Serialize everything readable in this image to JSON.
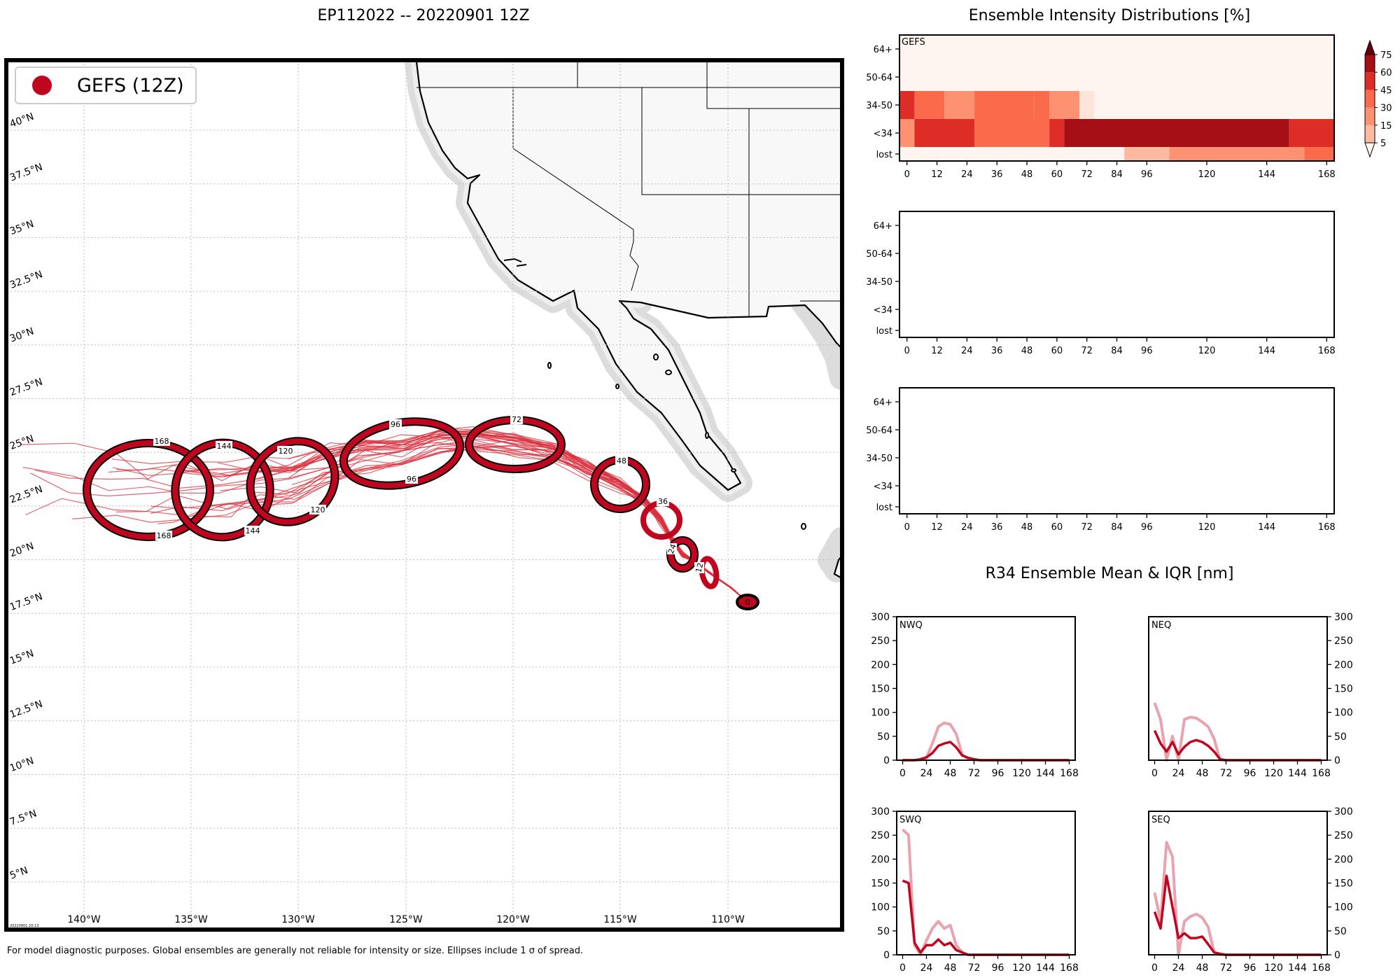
{
  "figure": {
    "map_title": "EP112022 -- 20220901 12Z",
    "intensity_title": "Ensemble Intensity Distributions [%]",
    "r34_title": "R34 Ensemble Mean & IQR [nm]",
    "footer": "For model diagnostic purposes. Global ensembles are generally not reliable for intensity or size. Ellipses include 1 σ of spread.",
    "timestamp": "20220901 20:13",
    "colors": {
      "accent": "#c0061f",
      "track": "#d9323f",
      "iqr": "#e8a3ae",
      "land": "#f8f8f8"
    }
  },
  "map": {
    "legend_label": "GEFS (12Z)",
    "lon_labels": [
      "140°W",
      "135°W",
      "130°W",
      "125°W",
      "120°W",
      "115°W",
      "110°W"
    ],
    "lat_labels": [
      "40°N",
      "37.5°N",
      "35°N",
      "32.5°N",
      "30°N",
      "27.5°N",
      "25°N",
      "22.5°N",
      "20°N",
      "17.5°N",
      "15°N",
      "12.5°N",
      "10°N",
      "7.5°N",
      "5°N"
    ]
  },
  "chart_data": [
    {
      "type": "heatmap",
      "panel": "GEFS",
      "rows": [
        "64+",
        "50-64",
        "34-50",
        "<34",
        "lost"
      ],
      "x_ticks": [
        0,
        12,
        24,
        36,
        48,
        60,
        72,
        84,
        96,
        120,
        144,
        168
      ],
      "colorbar": {
        "levels": [
          5,
          15,
          30,
          45,
          60,
          75
        ]
      },
      "cells": [
        {
          "row": "34-50",
          "x0": -3,
          "x1": 3,
          "pct": 68
        },
        {
          "row": "34-50",
          "x0": 3,
          "x1": 15,
          "pct": 50
        },
        {
          "row": "34-50",
          "x0": 15,
          "x1": 27,
          "pct": 30
        },
        {
          "row": "34-50",
          "x0": 27,
          "x1": 33,
          "pct": 48
        },
        {
          "row": "34-50",
          "x0": 33,
          "x1": 51,
          "pct": 58
        },
        {
          "row": "34-50",
          "x0": 51,
          "x1": 57,
          "pct": 47
        },
        {
          "row": "34-50",
          "x0": 57,
          "x1": 69,
          "pct": 30
        },
        {
          "row": "34-50",
          "x0": 69,
          "x1": 75,
          "pct": 12
        },
        {
          "row": "<34",
          "x0": -3,
          "x1": 3,
          "pct": 32
        },
        {
          "row": "<34",
          "x0": 3,
          "x1": 27,
          "pct": 68
        },
        {
          "row": "<34",
          "x0": 27,
          "x1": 57,
          "pct": 57
        },
        {
          "row": "<34",
          "x0": 57,
          "x1": 63,
          "pct": 68
        },
        {
          "row": "<34",
          "x0": 63,
          "x1": 153,
          "pct": 82
        },
        {
          "row": "<34",
          "x0": 153,
          "x1": 171,
          "pct": 68
        },
        {
          "row": "lost",
          "x0": 87,
          "x1": 105,
          "pct": 15
        },
        {
          "row": "lost",
          "x0": 105,
          "x1": 159,
          "pct": 33
        },
        {
          "row": "lost",
          "x0": 159,
          "x1": 171,
          "pct": 48
        }
      ]
    },
    {
      "type": "heatmap",
      "panel": "",
      "rows": [
        "64+",
        "50-64",
        "34-50",
        "<34",
        "lost"
      ],
      "x_ticks": [
        0,
        12,
        24,
        36,
        48,
        60,
        72,
        84,
        96,
        120,
        144,
        168
      ],
      "cells": []
    },
    {
      "type": "heatmap",
      "panel": "",
      "rows": [
        "64+",
        "50-64",
        "34-50",
        "<34",
        "lost"
      ],
      "x_ticks": [
        0,
        12,
        24,
        36,
        48,
        60,
        72,
        84,
        96,
        120,
        144,
        168
      ],
      "cells": []
    },
    {
      "type": "line",
      "panel": "NWQ",
      "x": [
        0,
        6,
        12,
        18,
        24,
        30,
        36,
        42,
        48,
        54,
        60,
        66,
        72,
        78,
        84,
        90,
        96,
        102,
        108,
        114,
        120,
        126,
        132,
        138,
        144,
        150,
        156,
        162,
        168
      ],
      "series": [
        {
          "role": "iqr",
          "values": [
            0,
            0,
            0,
            0,
            5,
            35,
            70,
            78,
            75,
            55,
            12,
            3,
            0,
            0,
            0,
            0,
            0,
            0,
            0,
            0,
            0,
            0,
            0,
            0,
            0,
            0,
            0,
            0,
            0
          ]
        },
        {
          "role": "mean",
          "values": [
            0,
            0,
            0,
            2,
            6,
            15,
            30,
            35,
            38,
            27,
            10,
            5,
            2,
            0,
            0,
            0,
            0,
            0,
            0,
            0,
            0,
            0,
            0,
            0,
            0,
            0,
            0,
            0,
            0
          ]
        }
      ],
      "x_ticks": [
        0,
        24,
        48,
        72,
        96,
        120,
        144,
        168
      ],
      "y_ticks": [
        0,
        50,
        100,
        150,
        200,
        250,
        300
      ],
      "ylim": [
        0,
        300
      ]
    },
    {
      "type": "line",
      "panel": "NEQ",
      "x": [
        0,
        6,
        12,
        18,
        24,
        30,
        36,
        42,
        48,
        54,
        60,
        66,
        72,
        78,
        84,
        90,
        96,
        102,
        108,
        114,
        120,
        126,
        132,
        138,
        144,
        150,
        156,
        162,
        168
      ],
      "series": [
        {
          "role": "iqr",
          "values": [
            120,
            85,
            0,
            50,
            0,
            85,
            90,
            88,
            80,
            70,
            45,
            0,
            0,
            0,
            0,
            0,
            0,
            0,
            0,
            0,
            0,
            0,
            0,
            0,
            0,
            0,
            0,
            0,
            0
          ]
        },
        {
          "role": "mean",
          "values": [
            62,
            35,
            18,
            38,
            12,
            28,
            38,
            42,
            38,
            30,
            18,
            2,
            0,
            0,
            0,
            0,
            0,
            0,
            0,
            0,
            0,
            0,
            0,
            0,
            0,
            0,
            0,
            0,
            0
          ]
        }
      ],
      "x_ticks": [
        0,
        24,
        48,
        72,
        96,
        120,
        144,
        168
      ],
      "y_ticks": [
        0,
        50,
        100,
        150,
        200,
        250,
        300
      ],
      "ylim": [
        0,
        300
      ]
    },
    {
      "type": "line",
      "panel": "SWQ",
      "x": [
        0,
        6,
        12,
        18,
        24,
        30,
        36,
        42,
        48,
        54,
        60,
        66,
        72,
        78,
        84,
        90,
        96,
        102,
        108,
        114,
        120,
        126,
        132,
        138,
        144,
        150,
        156,
        162,
        168
      ],
      "series": [
        {
          "role": "iqr",
          "values": [
            262,
            250,
            20,
            0,
            30,
            55,
            70,
            55,
            62,
            20,
            5,
            0,
            0,
            0,
            0,
            0,
            0,
            0,
            0,
            0,
            0,
            0,
            0,
            0,
            0,
            0,
            0,
            0,
            0
          ]
        },
        {
          "role": "mean",
          "values": [
            155,
            150,
            25,
            5,
            20,
            20,
            32,
            20,
            25,
            10,
            5,
            0,
            0,
            0,
            0,
            0,
            0,
            0,
            0,
            0,
            0,
            0,
            0,
            0,
            0,
            0,
            0,
            0,
            0
          ]
        }
      ],
      "x_ticks": [
        0,
        24,
        48,
        72,
        96,
        120,
        144,
        168
      ],
      "y_ticks": [
        0,
        50,
        100,
        150,
        200,
        250,
        300
      ],
      "ylim": [
        0,
        300
      ]
    },
    {
      "type": "line",
      "panel": "SEQ",
      "x": [
        0,
        6,
        12,
        18,
        24,
        30,
        36,
        42,
        48,
        54,
        60,
        66,
        72,
        78,
        84,
        90,
        96,
        102,
        108,
        114,
        120,
        126,
        132,
        138,
        144,
        150,
        156,
        162,
        168
      ],
      "series": [
        {
          "role": "iqr",
          "values": [
            130,
            70,
            235,
            205,
            0,
            70,
            80,
            85,
            78,
            58,
            5,
            0,
            0,
            0,
            0,
            0,
            0,
            0,
            0,
            0,
            0,
            0,
            0,
            0,
            0,
            0,
            0,
            0,
            0
          ]
        },
        {
          "role": "mean",
          "values": [
            90,
            55,
            165,
            100,
            35,
            45,
            35,
            35,
            38,
            22,
            5,
            2,
            0,
            0,
            0,
            0,
            0,
            0,
            0,
            0,
            0,
            0,
            0,
            0,
            0,
            0,
            0,
            0,
            0
          ]
        }
      ],
      "x_ticks": [
        0,
        24,
        48,
        72,
        96,
        120,
        144,
        168
      ],
      "y_ticks": [
        0,
        50,
        100,
        150,
        200,
        250,
        300
      ],
      "ylim": [
        0,
        300
      ]
    }
  ]
}
